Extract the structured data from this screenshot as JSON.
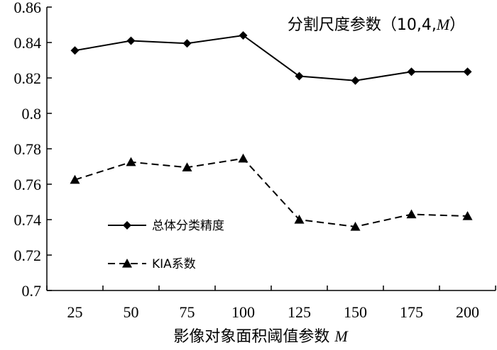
{
  "chart_data": {
    "type": "line",
    "title_prefix": "分割尺度参数（10,4,",
    "title_var": "M",
    "title_suffix": "）",
    "xlabel_prefix": "影像对象面积阈值参数 ",
    "xlabel_var": "M",
    "ylabel": "",
    "categories": [
      "25",
      "50",
      "75",
      "100",
      "125",
      "150",
      "175",
      "200"
    ],
    "yticks": [
      "0.7",
      "0.72",
      "0.74",
      "0.76",
      "0.78",
      "0.8",
      "0.82",
      "0.84",
      "0.86"
    ],
    "ylim": [
      0.7,
      0.86
    ],
    "grid": false,
    "legend_position": "bottom-left",
    "series": [
      {
        "name": "总体分类精度",
        "marker": "diamond",
        "line_style": "solid",
        "values": [
          0.8355,
          0.841,
          0.8395,
          0.844,
          0.821,
          0.8185,
          0.8235,
          0.8235
        ]
      },
      {
        "name": "KIA系数",
        "marker": "triangle",
        "line_style": "dashed",
        "values": [
          0.7625,
          0.7725,
          0.7695,
          0.7745,
          0.74,
          0.736,
          0.743,
          0.742
        ]
      }
    ]
  }
}
